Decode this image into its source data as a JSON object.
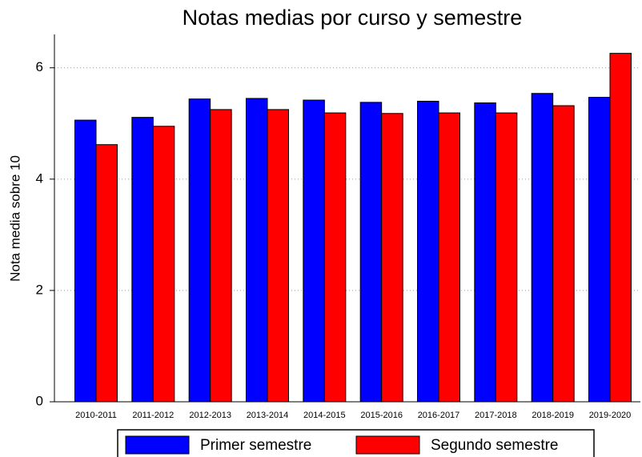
{
  "chart_data": {
    "type": "bar",
    "title": "Notas medias por curso y semestre",
    "y_label": "Nota media sobre 10",
    "categories": [
      "2010-2011",
      "2011-2012",
      "2012-2013",
      "2013-2014",
      "2014-2015",
      "2015-2016",
      "2016-2017",
      "2017-2018",
      "2018-2019",
      "2019-2020"
    ],
    "series": [
      {
        "name": "Primer semestre",
        "color": "#0000ff",
        "values": [
          5.06,
          5.11,
          5.44,
          5.45,
          5.42,
          5.38,
          5.4,
          5.37,
          5.54,
          5.47
        ]
      },
      {
        "name": "Segundo semestre",
        "color": "#ff0000",
        "values": [
          4.62,
          4.95,
          5.25,
          5.25,
          5.19,
          5.18,
          5.19,
          5.19,
          5.32,
          6.26
        ]
      }
    ],
    "ylim": [
      0,
      6.6
    ],
    "yticks": [
      0,
      2,
      4,
      6
    ],
    "grid": true
  }
}
